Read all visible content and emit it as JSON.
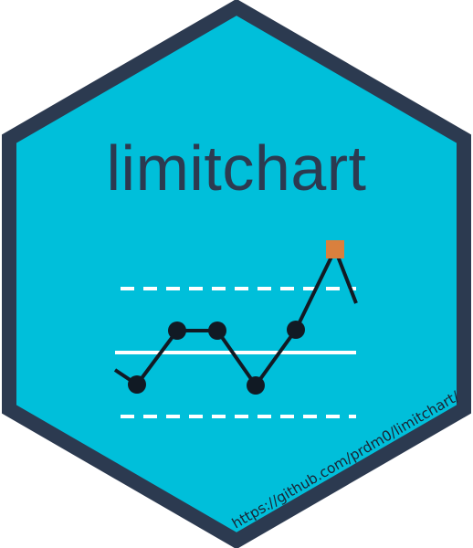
{
  "sticker": {
    "title": "limitchart",
    "url": "https://github.com/prdm0/limitchart/"
  },
  "colors": {
    "hex_fill": "#00bfda",
    "hex_border": "#2c3a50",
    "title_text": "#2c3a50",
    "url_text": "#1a2433",
    "center_line": "#ffffff",
    "limit_lines": "#ffffff",
    "series_line": "#111a24",
    "point": "#111a24",
    "out_of_control_point": "#d9803e"
  },
  "icon": "control-chart-icon"
}
